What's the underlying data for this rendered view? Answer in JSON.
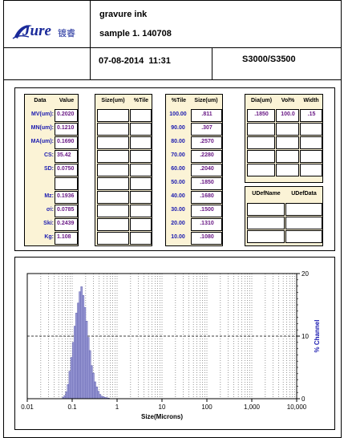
{
  "header": {
    "logo_text": "Jure",
    "logo_cn": "镀睿",
    "product": "gravure ink",
    "sample": "sample 1. 140708",
    "datetime": "07-08-2014  11:31",
    "model": "S3000/S3500"
  },
  "summary": {
    "col_data": "Data",
    "col_value": "Value",
    "rows": [
      {
        "label": "MV(um):",
        "value": "0.2020"
      },
      {
        "label": "MN(um):",
        "value": "0.1210"
      },
      {
        "label": "MA(um):",
        "value": "0.1690"
      },
      {
        "label": "CS:",
        "value": "35.42"
      },
      {
        "label": "SD:",
        "value": "0.0750"
      },
      {
        "label": "",
        "value": ""
      },
      {
        "label": "Mz:",
        "value": "0.1936"
      },
      {
        "label": "σi:",
        "value": "0.0785"
      },
      {
        "label": "Ski:",
        "value": "0.2439"
      },
      {
        "label": "Kg:",
        "value": "1.108"
      }
    ]
  },
  "size_table": {
    "col_size": "Size(um)",
    "col_tile": "%Tile"
  },
  "tile_table": {
    "col_tile": "%Tile",
    "col_size": "Size(um)",
    "rows": [
      {
        "tile": "100.00",
        "size": ".811"
      },
      {
        "tile": "90.00",
        "size": ".307"
      },
      {
        "tile": "80.00",
        "size": ".2570"
      },
      {
        "tile": "70.00",
        "size": ".2280"
      },
      {
        "tile": "60.00",
        "size": ".2040"
      },
      {
        "tile": "50.00",
        "size": ".1850"
      },
      {
        "tile": "40.00",
        "size": ".1680"
      },
      {
        "tile": "30.00",
        "size": ".1500"
      },
      {
        "tile": "20.00",
        "size": ".1310"
      },
      {
        "tile": "10.00",
        "size": ".1080"
      }
    ]
  },
  "peak_table": {
    "col_dia": "Dia(um)",
    "col_vol": "Vol%",
    "col_width": "Width",
    "row": {
      "dia": ".1850",
      "vol": "100.0",
      "width": ".15"
    }
  },
  "udef_table": {
    "col_name": "UDefName",
    "col_data": "UDefData"
  },
  "chart_data": {
    "type": "bar",
    "xlabel": "Size(Microns)",
    "ylabel": "% Channel",
    "x_scale": "log",
    "xlim": [
      0.01,
      10000
    ],
    "x_ticks": [
      "0.01",
      "0.1",
      "1",
      "10",
      "100",
      "1,000",
      "10,000"
    ],
    "ylim": [
      0,
      20
    ],
    "y_ticks": [
      "0",
      "10",
      "20"
    ],
    "grid": "dotted, dashed at 10%",
    "color": "#9b9bd6",
    "bars": [
      {
        "x": 0.0625,
        "y": 0.2
      },
      {
        "x": 0.0681,
        "y": 0.5
      },
      {
        "x": 0.0743,
        "y": 1.1
      },
      {
        "x": 0.081,
        "y": 2.3
      },
      {
        "x": 0.0883,
        "y": 4.4
      },
      {
        "x": 0.0963,
        "y": 6.6
      },
      {
        "x": 0.105,
        "y": 9.0
      },
      {
        "x": 0.1145,
        "y": 11.6
      },
      {
        "x": 0.1248,
        "y": 13.7
      },
      {
        "x": 0.1361,
        "y": 15.3
      },
      {
        "x": 0.1484,
        "y": 17.1
      },
      {
        "x": 0.1618,
        "y": 17.9
      },
      {
        "x": 0.1764,
        "y": 16.5
      },
      {
        "x": 0.1924,
        "y": 14.6
      },
      {
        "x": 0.2098,
        "y": 12.4
      },
      {
        "x": 0.2288,
        "y": 9.8
      },
      {
        "x": 0.2494,
        "y": 7.7
      },
      {
        "x": 0.272,
        "y": 5.3
      },
      {
        "x": 0.2966,
        "y": 4.1
      },
      {
        "x": 0.3234,
        "y": 2.7
      },
      {
        "x": 0.3527,
        "y": 1.9
      },
      {
        "x": 0.3846,
        "y": 1.2
      },
      {
        "x": 0.4194,
        "y": 0.7
      },
      {
        "x": 0.4573,
        "y": 0.4
      },
      {
        "x": 0.4987,
        "y": 0.3
      },
      {
        "x": 0.5438,
        "y": 0.2
      },
      {
        "x": 0.593,
        "y": 0.15
      },
      {
        "x": 0.6466,
        "y": 0.1
      }
    ]
  }
}
